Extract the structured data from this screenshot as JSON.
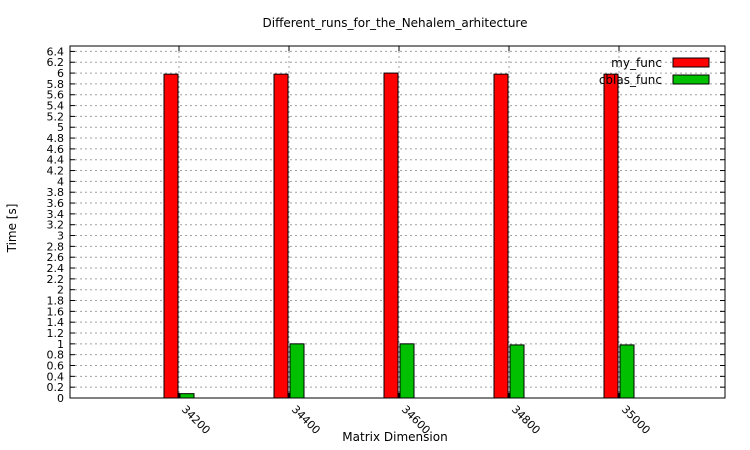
{
  "chart_data": {
    "type": "bar",
    "title": "Different_runs_for_the_Nehalem_arhitecture",
    "xlabel": "Matrix Dimension",
    "ylabel": "Time [s]",
    "categories": [
      "34200",
      "34400",
      "34600",
      "34800",
      "35000"
    ],
    "series": [
      {
        "name": "my_func",
        "color": "#ff0000",
        "values": [
          5.98,
          5.98,
          6.0,
          5.98,
          5.98
        ]
      },
      {
        "name": "cblas_func",
        "color": "#00c000",
        "values": [
          0.08,
          1.0,
          1.0,
          0.98,
          0.98
        ]
      }
    ],
    "ylim": [
      0,
      6.5
    ],
    "yticks": [
      0,
      0.2,
      0.4,
      0.6,
      0.8,
      1,
      1.2,
      1.4,
      1.6,
      1.8,
      2,
      2.2,
      2.4,
      2.6,
      2.8,
      3,
      3.2,
      3.4,
      3.6,
      3.8,
      4,
      4.2,
      4.4,
      4.6,
      4.8,
      5,
      5.2,
      5.4,
      5.6,
      5.8,
      6,
      6.2,
      6.4
    ],
    "ytick_labels": [
      "0",
      "0.2",
      "0.4",
      "0.6",
      "0.8",
      "1",
      "1.2",
      "1.4",
      "1.6",
      "1.8",
      "2",
      "2.2",
      "2.4",
      "2.6",
      "2.8",
      "3",
      "3.2",
      "3.4",
      "3.6",
      "3.8",
      "4",
      "4.2",
      "4.4",
      "4.6",
      "4.8",
      "5",
      "5.2",
      "5.4",
      "5.6",
      "5.8",
      "6",
      "6.2",
      "6.4"
    ],
    "grid": true,
    "legend_position": "top-right"
  }
}
